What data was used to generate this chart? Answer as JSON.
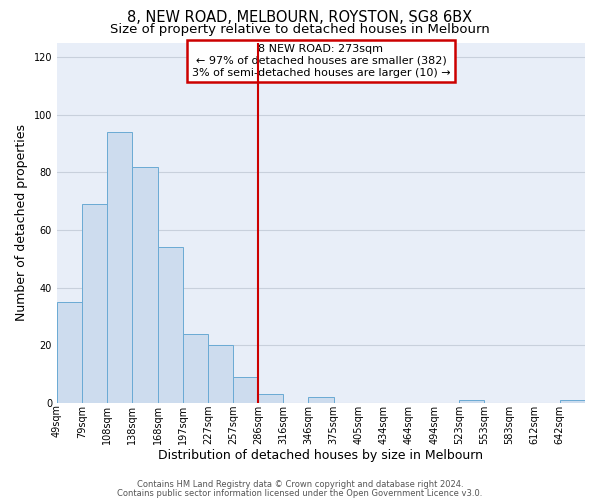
{
  "title": "8, NEW ROAD, MELBOURN, ROYSTON, SG8 6BX",
  "subtitle": "Size of property relative to detached houses in Melbourn",
  "xlabel": "Distribution of detached houses by size in Melbourn",
  "ylabel": "Number of detached properties",
  "bar_values": [
    35,
    69,
    94,
    82,
    54,
    24,
    20,
    9,
    3,
    0,
    2,
    0,
    0,
    0,
    0,
    0,
    1,
    0,
    0,
    0,
    1
  ],
  "bin_labels": [
    "49sqm",
    "79sqm",
    "108sqm",
    "138sqm",
    "168sqm",
    "197sqm",
    "227sqm",
    "257sqm",
    "286sqm",
    "316sqm",
    "346sqm",
    "375sqm",
    "405sqm",
    "434sqm",
    "464sqm",
    "494sqm",
    "523sqm",
    "553sqm",
    "583sqm",
    "612sqm",
    "642sqm"
  ],
  "bar_face_color": "#cddcee",
  "bar_edge_color": "#6aaad4",
  "vline_x": 8,
  "vline_color": "#cc0000",
  "ylim": [
    0,
    125
  ],
  "yticks": [
    0,
    20,
    40,
    60,
    80,
    100,
    120
  ],
  "annotation_title": "8 NEW ROAD: 273sqm",
  "annotation_line1": "← 97% of detached houses are smaller (382)",
  "annotation_line2": "3% of semi-detached houses are larger (10) →",
  "annotation_box_color": "#cc0000",
  "footer_line1": "Contains HM Land Registry data © Crown copyright and database right 2024.",
  "footer_line2": "Contains public sector information licensed under the Open Government Licence v3.0.",
  "background_color": "#ffffff",
  "axes_background_color": "#e8eef8",
  "grid_color": "#c8d0dc",
  "title_fontsize": 10.5,
  "subtitle_fontsize": 9.5,
  "axis_label_fontsize": 9,
  "tick_fontsize": 7,
  "footer_fontsize": 6,
  "num_bins": 21,
  "vline_bin_index": 8
}
